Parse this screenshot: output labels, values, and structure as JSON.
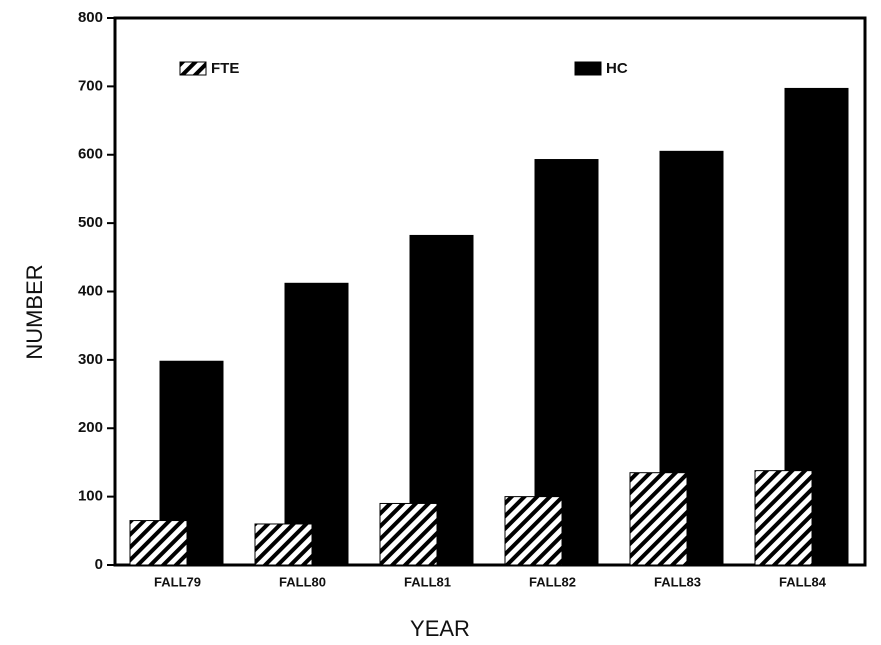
{
  "chart_data": {
    "type": "bar",
    "categories": [
      "FALL79",
      "FALL80",
      "FALL81",
      "FALL82",
      "FALL83",
      "FALL84"
    ],
    "series": [
      {
        "name": "FTE",
        "color": "#000000",
        "pattern": "hatch",
        "values": [
          65,
          60,
          90,
          100,
          135,
          138
        ]
      },
      {
        "name": "HC",
        "color": "#000000",
        "values": [
          298,
          412,
          482,
          593,
          605,
          697
        ]
      }
    ],
    "ylim": [
      0,
      800
    ],
    "yticks": [
      0,
      100,
      200,
      300,
      400,
      500,
      600,
      700,
      800
    ],
    "xlabel": "YEAR",
    "ylabel": "NUMBER",
    "legend": "top",
    "grid": false
  }
}
